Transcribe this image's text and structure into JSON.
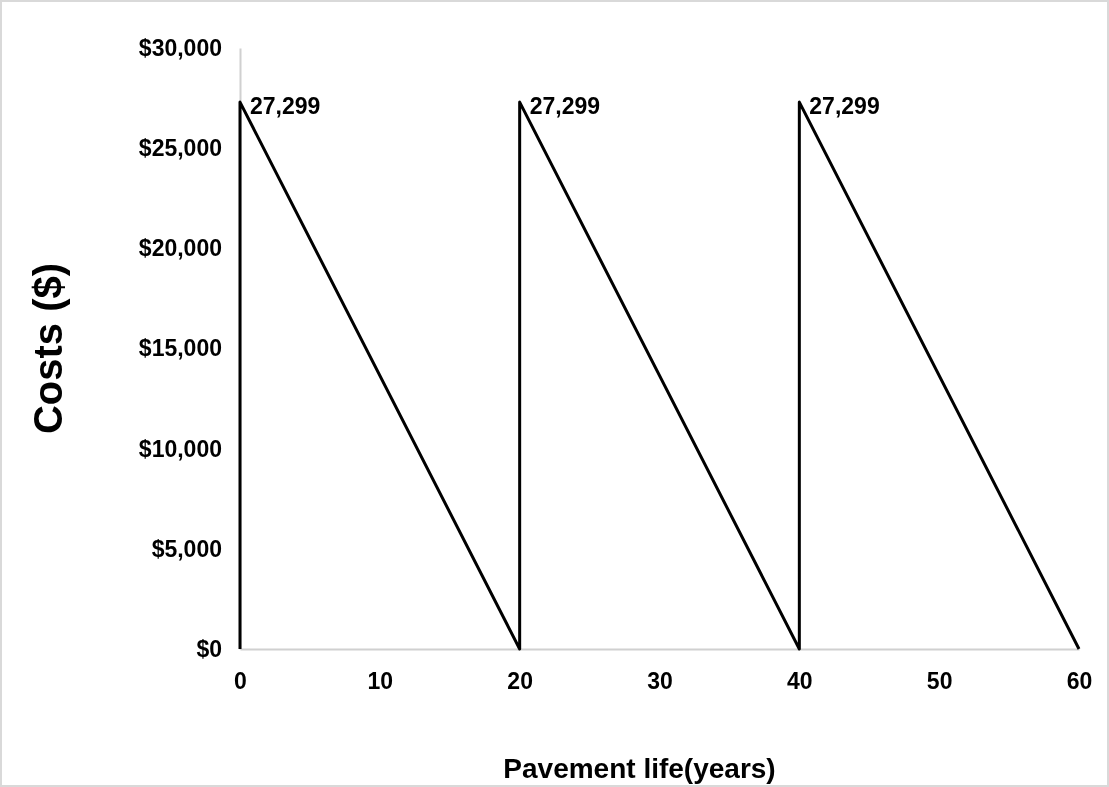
{
  "chart_data": {
    "type": "line",
    "xlabel": "Pavement life(years)",
    "ylabel": "Costs ($)",
    "x": [
      0,
      0,
      20,
      20,
      40,
      40,
      60
    ],
    "series": [
      {
        "color": "#000000",
        "values": [
          0,
          27299,
          0,
          27299,
          0,
          27299,
          0
        ],
        "value_labels": [
          null,
          "27,299",
          null,
          "27,299",
          null,
          "27,299",
          null
        ]
      }
    ],
    "xlim": [
      0,
      60
    ],
    "xticks": [
      0,
      10,
      20,
      30,
      40,
      50,
      60
    ],
    "ylim": [
      0,
      30000
    ],
    "yticks": [
      {
        "value": 0,
        "label": "$0"
      },
      {
        "value": 5000,
        "label": "$5,000"
      },
      {
        "value": 10000,
        "label": "$10,000"
      },
      {
        "value": 15000,
        "label": "$15,000"
      },
      {
        "value": 20000,
        "label": "$20,000"
      },
      {
        "value": 25000,
        "label": "$25,000"
      },
      {
        "value": 30000,
        "label": "$30,000"
      }
    ],
    "grid": false,
    "marker": "none",
    "line_style": "solid"
  }
}
